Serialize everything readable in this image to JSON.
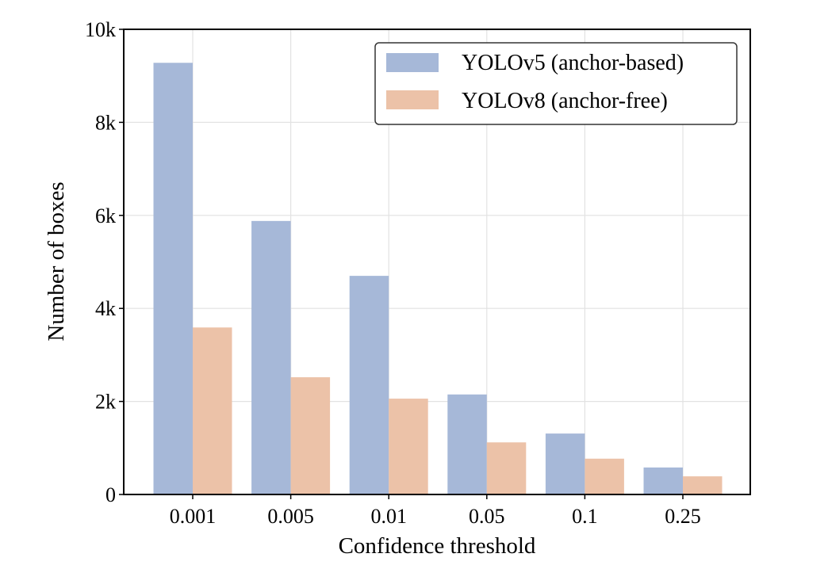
{
  "chart_data": {
    "type": "bar",
    "title": "",
    "xlabel": "Confidence threshold",
    "ylabel": "Number of boxes",
    "categories": [
      "0.001",
      "0.005",
      "0.01",
      "0.05",
      "0.1",
      "0.25"
    ],
    "series": [
      {
        "name": "YOLOv5 (anchor-based)",
        "color": "#a6b8d8",
        "values": [
          9280,
          5880,
          4700,
          2150,
          1310,
          580
        ]
      },
      {
        "name": "YOLOv8 (anchor-free)",
        "color": "#ecc2a8",
        "values": [
          3590,
          2520,
          2060,
          1120,
          770,
          390
        ]
      }
    ],
    "ylim": [
      0,
      10000
    ],
    "yticks": [
      0,
      2000,
      4000,
      6000,
      8000,
      10000
    ],
    "ytick_labels": [
      "0",
      "2k",
      "4k",
      "6k",
      "8k",
      "10k"
    ],
    "grid": true,
    "legend_position": "top-right"
  }
}
